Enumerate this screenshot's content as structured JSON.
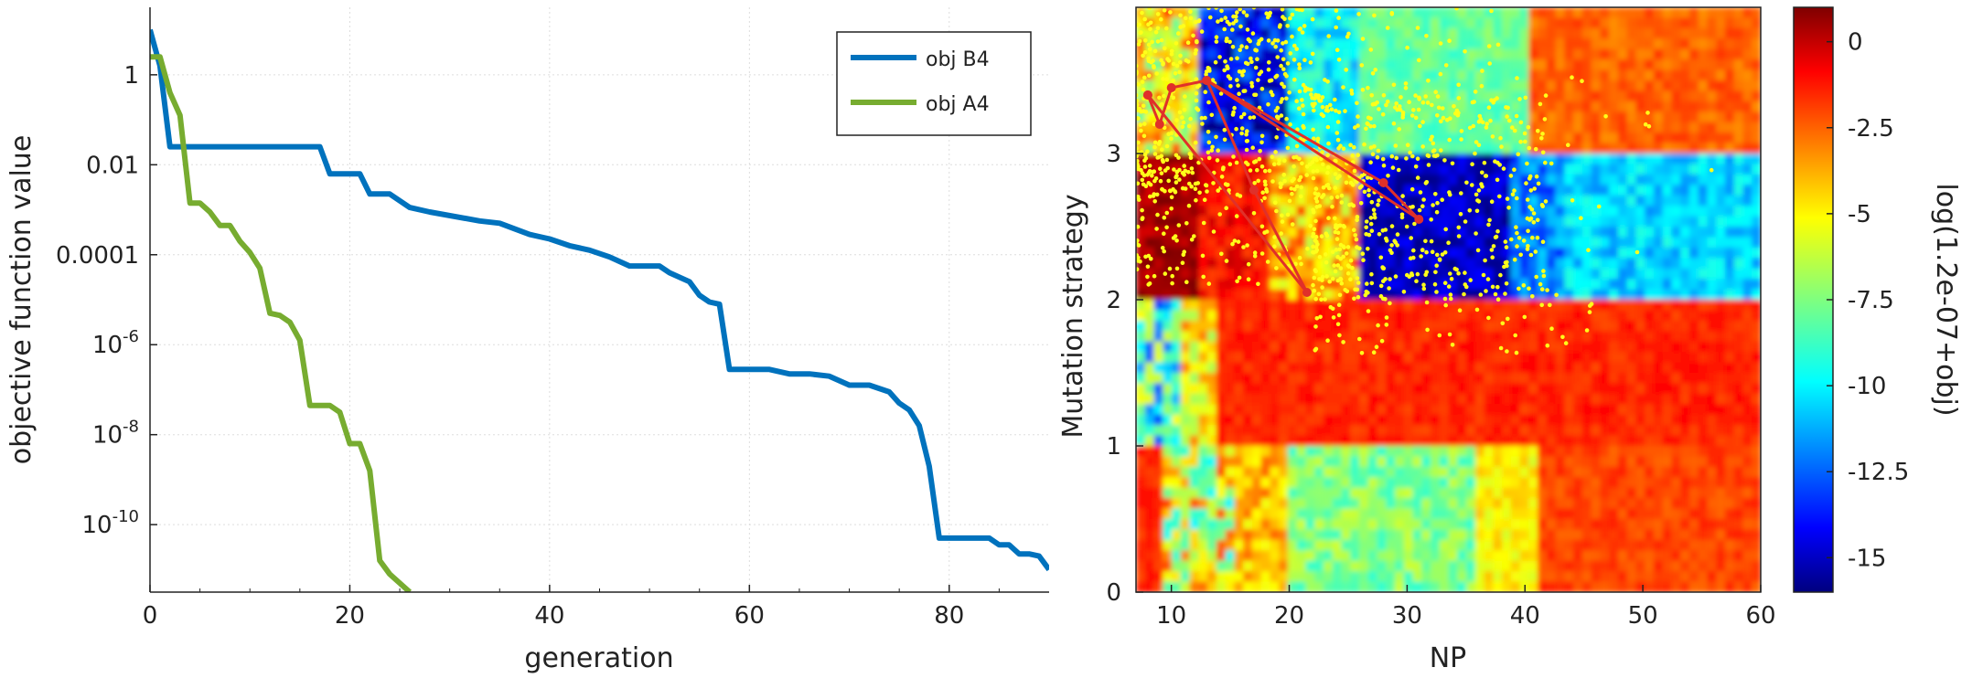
{
  "chart_data": [
    {
      "type": "line",
      "xlabel": "generation",
      "ylabel": "objective function value",
      "xlim": [
        0,
        90
      ],
      "ylim_log10": [
        -11.5,
        1.5
      ],
      "x_ticks": [
        {
          "v": 0,
          "label": "0"
        },
        {
          "v": 20,
          "label": "20"
        },
        {
          "v": 40,
          "label": "40"
        },
        {
          "v": 60,
          "label": "60"
        },
        {
          "v": 80,
          "label": "80"
        }
      ],
      "y_ticks": [
        {
          "exp": 0,
          "label": "1"
        },
        {
          "exp": -2,
          "label": "0.01"
        },
        {
          "exp": -4,
          "label": "0.0001"
        },
        {
          "exp": -6,
          "label": "10",
          "sup": "-6"
        },
        {
          "exp": -8,
          "label": "10",
          "sup": "-8"
        },
        {
          "exp": -10,
          "label": "10",
          "sup": "-10"
        }
      ],
      "legend": [
        {
          "name": "obj B4",
          "color": "#0072BD"
        },
        {
          "name": "obj A4",
          "color": "#77AC30"
        }
      ],
      "series": [
        {
          "name": "obj B4",
          "color": "#0072BD",
          "x": [
            0,
            1,
            2,
            17,
            18,
            21,
            22,
            24,
            26,
            28,
            33,
            35,
            38,
            40,
            42,
            44,
            46,
            48,
            51,
            52,
            54,
            55,
            56,
            57,
            58,
            62,
            64,
            66,
            68,
            70,
            72,
            74,
            75,
            76,
            77,
            78,
            79,
            80,
            84,
            85,
            86,
            87,
            88,
            89,
            90
          ],
          "log_y": [
            1.0,
            0.2,
            -1.6,
            -1.6,
            -2.2,
            -2.2,
            -2.65,
            -2.65,
            -2.95,
            -3.05,
            -3.25,
            -3.3,
            -3.55,
            -3.65,
            -3.8,
            -3.9,
            -4.05,
            -4.25,
            -4.25,
            -4.4,
            -4.6,
            -4.9,
            -5.05,
            -5.1,
            -6.55,
            -6.55,
            -6.65,
            -6.65,
            -6.7,
            -6.9,
            -6.9,
            -7.05,
            -7.3,
            -7.45,
            -7.8,
            -8.7,
            -10.3,
            -10.3,
            -10.3,
            -10.45,
            -10.45,
            -10.65,
            -10.65,
            -10.7,
            -11.0
          ]
        },
        {
          "name": "obj A4",
          "color": "#77AC30",
          "x": [
            0,
            1,
            2,
            3,
            4,
            5,
            6,
            7,
            8,
            9,
            10,
            11,
            12,
            13,
            14,
            15,
            16,
            17,
            18,
            19,
            20,
            21,
            22,
            23,
            24,
            25,
            26
          ],
          "log_y": [
            0.4,
            0.4,
            -0.4,
            -0.9,
            -2.85,
            -2.85,
            -3.05,
            -3.35,
            -3.35,
            -3.7,
            -3.95,
            -4.3,
            -5.3,
            -5.35,
            -5.5,
            -5.9,
            -7.35,
            -7.35,
            -7.35,
            -7.5,
            -8.2,
            -8.2,
            -8.8,
            -10.8,
            -11.1,
            -11.3,
            -11.5
          ]
        }
      ]
    },
    {
      "type": "heatmap",
      "xlabel": "NP",
      "ylabel": "Mutation strategy",
      "xlim": [
        7,
        60
      ],
      "ylim": [
        0,
        4
      ],
      "x_ticks": [
        "10",
        "20",
        "30",
        "40",
        "50",
        "60"
      ],
      "x_tick_values": [
        10,
        20,
        30,
        40,
        50,
        60
      ],
      "y_ticks": [
        "0",
        "1",
        "2",
        "3"
      ],
      "y_tick_values": [
        0,
        1,
        2,
        3
      ],
      "colorbar": {
        "label": "log(1.2e-07+obj)",
        "range": [
          -16,
          1
        ],
        "ticks": [
          "0",
          "-2.5",
          "-5",
          "-7.5",
          "-10",
          "-12.5",
          "-15"
        ],
        "tick_values": [
          0,
          -2.5,
          -5,
          -7.5,
          -10,
          -12.5,
          -15
        ]
      },
      "path": {
        "color": "#E0302A",
        "points": [
          [
            8,
            3.4
          ],
          [
            9,
            3.2
          ],
          [
            10,
            3.45
          ],
          [
            13,
            3.5
          ],
          [
            28,
            2.8
          ],
          [
            31,
            2.55
          ],
          [
            13,
            3.5
          ],
          [
            17,
            2.75
          ],
          [
            21.5,
            2.05
          ],
          [
            8,
            3.4
          ]
        ]
      },
      "scatter_color": "#FFFF1A"
    }
  ]
}
